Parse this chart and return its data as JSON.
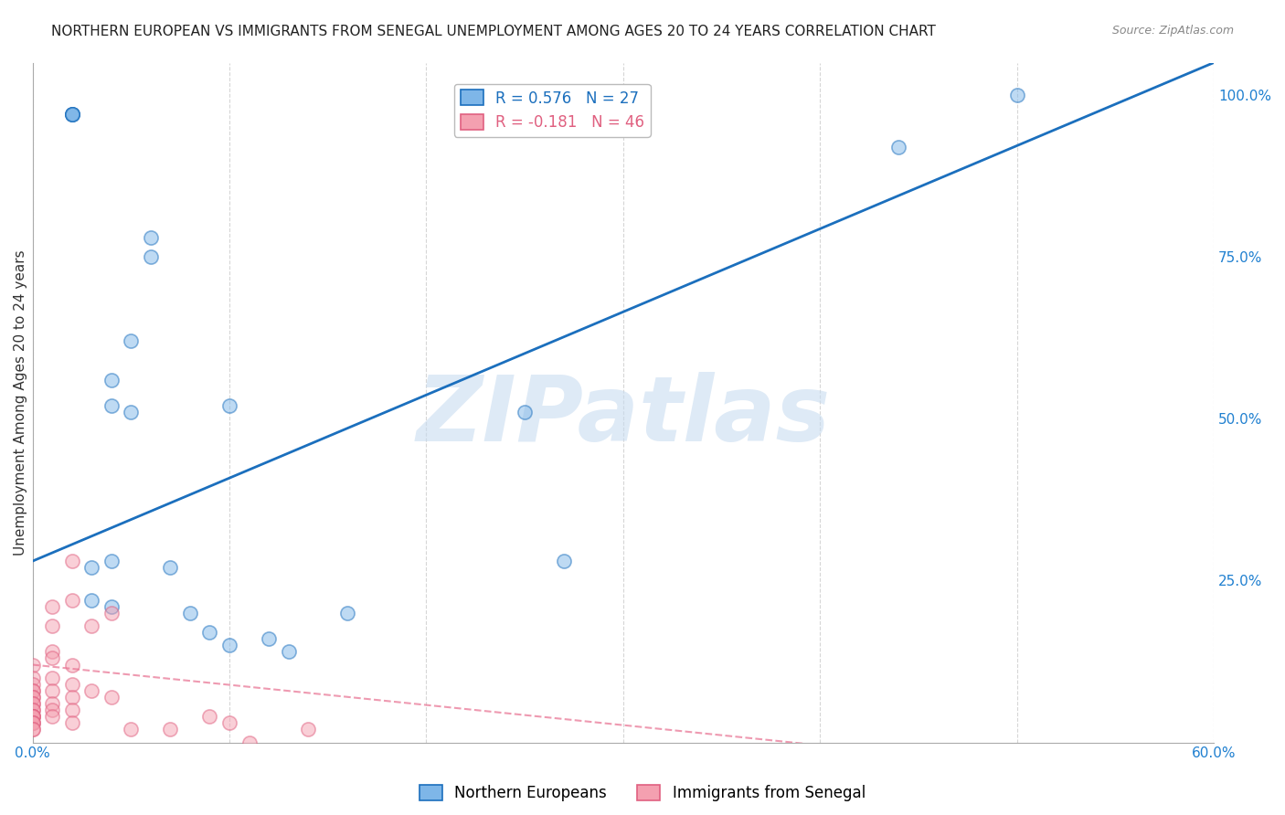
{
  "title": "NORTHERN EUROPEAN VS IMMIGRANTS FROM SENEGAL UNEMPLOYMENT AMONG AGES 20 TO 24 YEARS CORRELATION CHART",
  "source": "Source: ZipAtlas.com",
  "xlabel": "",
  "ylabel": "Unemployment Among Ages 20 to 24 years",
  "xlim": [
    0.0,
    0.6
  ],
  "ylim": [
    0.0,
    1.05
  ],
  "xticks": [
    0.0,
    0.1,
    0.2,
    0.3,
    0.4,
    0.5,
    0.6
  ],
  "xtick_labels": [
    "0.0%",
    "",
    "",
    "",
    "",
    "",
    "60.0%"
  ],
  "yticks_right": [
    0.0,
    0.25,
    0.5,
    0.75,
    1.0
  ],
  "ytick_right_labels": [
    "",
    "25.0%",
    "50.0%",
    "75.0%",
    "100.0%"
  ],
  "blue_R": 0.576,
  "blue_N": 27,
  "pink_R": -0.181,
  "pink_N": 46,
  "blue_color": "#7EB6E8",
  "pink_color": "#F4A0B0",
  "blue_line_color": "#1B6FBD",
  "pink_line_color": "#E87090",
  "pink_edge_color": "#E06080",
  "watermark_text": "ZIPatlas",
  "watermark_color": "#C8DCF0",
  "legend_blue_label": "Northern Europeans",
  "legend_pink_label": "Immigrants from Senegal",
  "blue_scatter_x": [
    0.02,
    0.02,
    0.02,
    0.02,
    0.02,
    0.03,
    0.03,
    0.04,
    0.04,
    0.04,
    0.04,
    0.05,
    0.05,
    0.06,
    0.06,
    0.07,
    0.08,
    0.09,
    0.1,
    0.1,
    0.12,
    0.13,
    0.16,
    0.25,
    0.27,
    0.44,
    0.5
  ],
  "blue_scatter_y": [
    0.97,
    0.97,
    0.97,
    0.97,
    0.97,
    0.27,
    0.22,
    0.56,
    0.52,
    0.28,
    0.21,
    0.62,
    0.51,
    0.78,
    0.75,
    0.27,
    0.2,
    0.17,
    0.52,
    0.15,
    0.16,
    0.14,
    0.2,
    0.51,
    0.28,
    0.92,
    1.0
  ],
  "pink_scatter_x": [
    0.0,
    0.0,
    0.0,
    0.0,
    0.0,
    0.0,
    0.0,
    0.0,
    0.0,
    0.0,
    0.0,
    0.0,
    0.0,
    0.0,
    0.0,
    0.0,
    0.0,
    0.0,
    0.0,
    0.0,
    0.01,
    0.01,
    0.01,
    0.01,
    0.01,
    0.01,
    0.01,
    0.01,
    0.01,
    0.02,
    0.02,
    0.02,
    0.02,
    0.02,
    0.02,
    0.02,
    0.03,
    0.03,
    0.04,
    0.04,
    0.05,
    0.07,
    0.09,
    0.1,
    0.11,
    0.14
  ],
  "pink_scatter_y": [
    0.12,
    0.1,
    0.09,
    0.08,
    0.08,
    0.07,
    0.07,
    0.06,
    0.06,
    0.05,
    0.05,
    0.04,
    0.04,
    0.04,
    0.04,
    0.03,
    0.03,
    0.03,
    0.02,
    0.02,
    0.21,
    0.18,
    0.14,
    0.13,
    0.1,
    0.08,
    0.06,
    0.05,
    0.04,
    0.28,
    0.22,
    0.12,
    0.09,
    0.07,
    0.05,
    0.03,
    0.18,
    0.08,
    0.2,
    0.07,
    0.02,
    0.02,
    0.04,
    0.03,
    0.0,
    0.02
  ],
  "blue_line_x0": 0.0,
  "blue_line_y0": 0.28,
  "blue_line_x1": 0.6,
  "blue_line_y1": 1.05,
  "pink_line_x0": 0.0,
  "pink_line_y0": 0.12,
  "pink_line_x1": 0.45,
  "pink_line_y1": -0.02,
  "bg_color": "#FFFFFF",
  "grid_color": "#CCCCCC",
  "marker_size": 120,
  "marker_alpha": 0.5,
  "marker_edgewidth": 1.2,
  "title_fontsize": 11,
  "source_fontsize": 9,
  "axis_label_fontsize": 11
}
